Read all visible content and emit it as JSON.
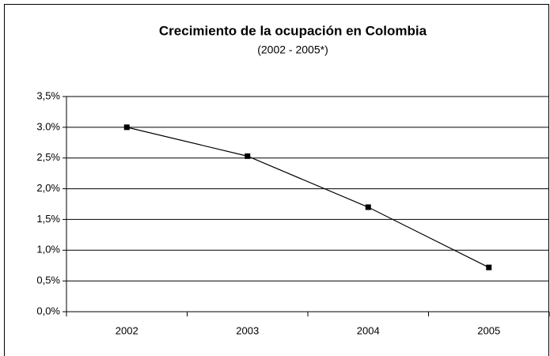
{
  "chart_data": {
    "type": "line",
    "title": "Crecimiento de la ocupación en Colombia",
    "subtitle": "(2002 - 2005*)",
    "categories": [
      "2002",
      "2003",
      "2004",
      "2005"
    ],
    "series": [
      {
        "name": "Crecimiento de la ocupación",
        "color": "#000000",
        "values": [
          3.0,
          2.53,
          1.7,
          0.72
        ]
      }
    ],
    "ylim": [
      0,
      3.5
    ],
    "yticks": [
      {
        "value": 0,
        "label": "0,0%"
      },
      {
        "value": 0.5,
        "label": "0,5%"
      },
      {
        "value": 1.0,
        "label": "1,0%"
      },
      {
        "value": 1.5,
        "label": "1,5%"
      },
      {
        "value": 2.0,
        "label": "2,0%"
      },
      {
        "value": 2.5,
        "label": "2,5%"
      },
      {
        "value": 3.0,
        "label": "3.0%"
      },
      {
        "value": 3.5,
        "label": "3,5%"
      }
    ],
    "grid": true
  }
}
